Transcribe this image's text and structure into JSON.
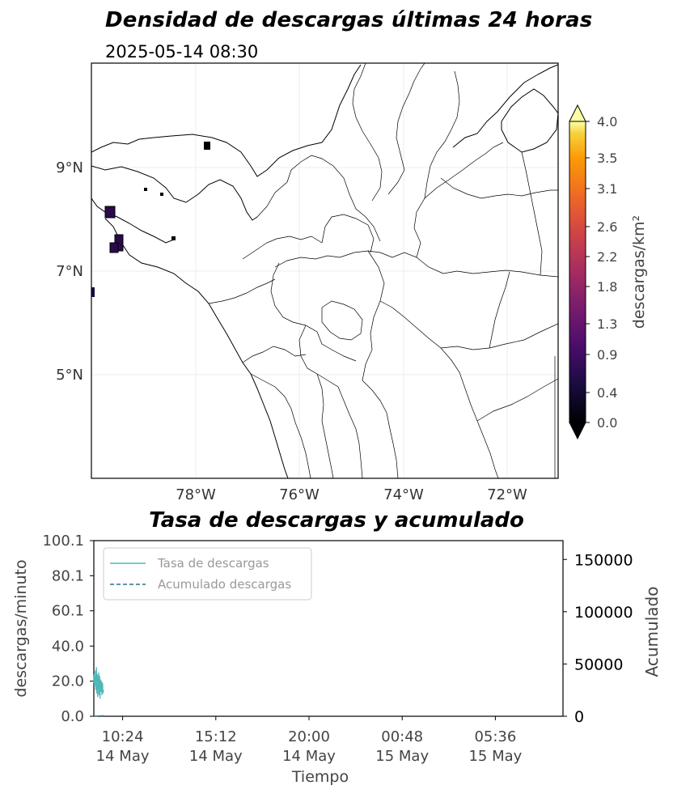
{
  "map": {
    "title": "Densidad de descargas últimas 24 horas",
    "subtitle": "2025-05-14 08:30",
    "lon_ticks": [
      "78°W",
      "76°W",
      "74°W",
      "72°W"
    ],
    "lat_ticks": [
      "9°N",
      "7°N",
      "5°N"
    ],
    "colorbar": {
      "label": "descargas/km²",
      "ticks": [
        "4.0",
        "3.5",
        "3.1",
        "2.6",
        "2.2",
        "1.8",
        "1.3",
        "0.9",
        "0.4",
        "0.0"
      ],
      "colormap": "inferno",
      "range": [
        0.0,
        4.0
      ]
    }
  },
  "chart_data": {
    "type": "line",
    "title": "Tasa de descargas y acumulado",
    "xlabel": "Tiempo",
    "ylabel": "descargas/minuto",
    "y2label": "Acumulado",
    "x_ticks": [
      "10:24\n14 May",
      "15:12\n14 May",
      "20:00\n14 May",
      "00:48\n15 May",
      "05:36\n15 May"
    ],
    "x_range": [
      "2025-05-14 08:55",
      "2025-05-15 09:05"
    ],
    "ylim": [
      0.0,
      100.1
    ],
    "y_ticks": [
      "0.0",
      "20.0",
      "40.0",
      "60.1",
      "80.1",
      "100.1"
    ],
    "y2lim": [
      0,
      168000
    ],
    "y2_ticks": [
      "0",
      "50000",
      "100000",
      "150000"
    ],
    "legend": "top-left",
    "series": [
      {
        "name": "Tasa de descargas",
        "color": "#4fb8b8",
        "style": "solid",
        "x": [
          "08:55",
          "08:56",
          "08:57",
          "08:58",
          "08:59",
          "09:00",
          "09:01",
          "09:02",
          "09:03",
          "09:04",
          "09:05",
          "09:06",
          "09:07",
          "09:08",
          "09:09",
          "09:10",
          "09:11",
          "09:12",
          "09:13",
          "09:14",
          "09:15",
          "09:16",
          "09:17",
          "09:18",
          "09:19",
          "09:20",
          "09:21",
          "09:22",
          "09:23",
          "09:24",
          "09:25"
        ],
        "values": [
          19,
          24,
          17,
          22,
          18,
          26,
          15,
          21,
          28,
          13,
          20,
          24,
          11,
          22,
          17,
          25,
          12,
          19,
          23,
          10,
          18,
          21,
          14,
          17,
          20,
          12,
          16,
          19,
          13,
          15,
          14
        ]
      },
      {
        "name": "Acumulado descargas",
        "color": "#2e6e8e",
        "style": "dashed",
        "x": [
          "08:55",
          "09:25"
        ],
        "values": [
          0,
          560
        ]
      }
    ],
    "legend_entries": [
      "Tasa de descargas",
      "Acumulado descargas"
    ]
  }
}
